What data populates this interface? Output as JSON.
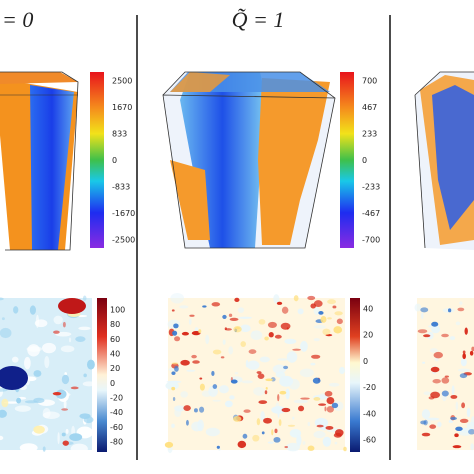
{
  "panels": [
    {
      "title": "= 0",
      "colorbar_top": [
        2500,
        1670,
        833,
        0,
        -833,
        -1670,
        -2500
      ],
      "colorbar_bottom": [
        100,
        80,
        60,
        40,
        20,
        0,
        -20,
        -40,
        -60,
        -80
      ]
    },
    {
      "title": "Q̃ = 1",
      "colorbar_top": [
        700,
        467,
        233,
        0,
        -233,
        -467,
        -700
      ],
      "colorbar_bottom": [
        40,
        20,
        0,
        -20,
        -40,
        -60
      ]
    }
  ]
}
